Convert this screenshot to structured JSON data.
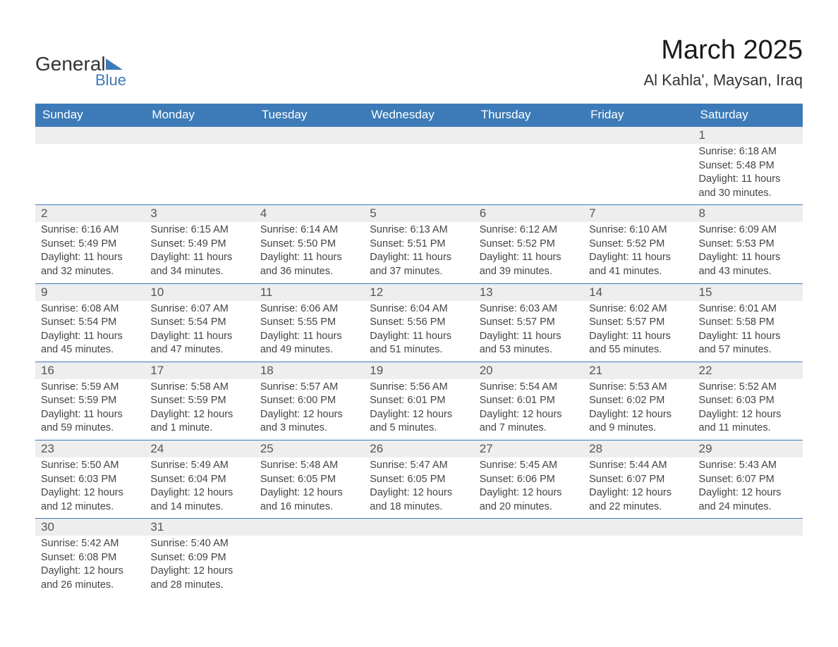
{
  "logo": {
    "word1": "General",
    "word2": "Blue"
  },
  "title": "March 2025",
  "location": "Al Kahla', Maysan, Iraq",
  "colors": {
    "header_bg": "#3d7bb8",
    "header_text": "#ffffff",
    "daynum_bg": "#eeeeee",
    "daynum_text": "#555555",
    "detail_text": "#444444",
    "border": "#3d7bb8",
    "logo_blue": "#3d7bb8",
    "logo_dark": "#333333"
  },
  "day_headers": [
    "Sunday",
    "Monday",
    "Tuesday",
    "Wednesday",
    "Thursday",
    "Friday",
    "Saturday"
  ],
  "weeks": [
    [
      null,
      null,
      null,
      null,
      null,
      null,
      {
        "day": "1",
        "sunrise": "6:18 AM",
        "sunset": "5:48 PM",
        "daylight_hours": "11 hours",
        "daylight_minutes": "30 minutes."
      }
    ],
    [
      {
        "day": "2",
        "sunrise": "6:16 AM",
        "sunset": "5:49 PM",
        "daylight_hours": "11 hours",
        "daylight_minutes": "32 minutes."
      },
      {
        "day": "3",
        "sunrise": "6:15 AM",
        "sunset": "5:49 PM",
        "daylight_hours": "11 hours",
        "daylight_minutes": "34 minutes."
      },
      {
        "day": "4",
        "sunrise": "6:14 AM",
        "sunset": "5:50 PM",
        "daylight_hours": "11 hours",
        "daylight_minutes": "36 minutes."
      },
      {
        "day": "5",
        "sunrise": "6:13 AM",
        "sunset": "5:51 PM",
        "daylight_hours": "11 hours",
        "daylight_minutes": "37 minutes."
      },
      {
        "day": "6",
        "sunrise": "6:12 AM",
        "sunset": "5:52 PM",
        "daylight_hours": "11 hours",
        "daylight_minutes": "39 minutes."
      },
      {
        "day": "7",
        "sunrise": "6:10 AM",
        "sunset": "5:52 PM",
        "daylight_hours": "11 hours",
        "daylight_minutes": "41 minutes."
      },
      {
        "day": "8",
        "sunrise": "6:09 AM",
        "sunset": "5:53 PM",
        "daylight_hours": "11 hours",
        "daylight_minutes": "43 minutes."
      }
    ],
    [
      {
        "day": "9",
        "sunrise": "6:08 AM",
        "sunset": "5:54 PM",
        "daylight_hours": "11 hours",
        "daylight_minutes": "45 minutes."
      },
      {
        "day": "10",
        "sunrise": "6:07 AM",
        "sunset": "5:54 PM",
        "daylight_hours": "11 hours",
        "daylight_minutes": "47 minutes."
      },
      {
        "day": "11",
        "sunrise": "6:06 AM",
        "sunset": "5:55 PM",
        "daylight_hours": "11 hours",
        "daylight_minutes": "49 minutes."
      },
      {
        "day": "12",
        "sunrise": "6:04 AM",
        "sunset": "5:56 PM",
        "daylight_hours": "11 hours",
        "daylight_minutes": "51 minutes."
      },
      {
        "day": "13",
        "sunrise": "6:03 AM",
        "sunset": "5:57 PM",
        "daylight_hours": "11 hours",
        "daylight_minutes": "53 minutes."
      },
      {
        "day": "14",
        "sunrise": "6:02 AM",
        "sunset": "5:57 PM",
        "daylight_hours": "11 hours",
        "daylight_minutes": "55 minutes."
      },
      {
        "day": "15",
        "sunrise": "6:01 AM",
        "sunset": "5:58 PM",
        "daylight_hours": "11 hours",
        "daylight_minutes": "57 minutes."
      }
    ],
    [
      {
        "day": "16",
        "sunrise": "5:59 AM",
        "sunset": "5:59 PM",
        "daylight_hours": "11 hours",
        "daylight_minutes": "59 minutes."
      },
      {
        "day": "17",
        "sunrise": "5:58 AM",
        "sunset": "5:59 PM",
        "daylight_hours": "12 hours",
        "daylight_minutes": "1 minute."
      },
      {
        "day": "18",
        "sunrise": "5:57 AM",
        "sunset": "6:00 PM",
        "daylight_hours": "12 hours",
        "daylight_minutes": "3 minutes."
      },
      {
        "day": "19",
        "sunrise": "5:56 AM",
        "sunset": "6:01 PM",
        "daylight_hours": "12 hours",
        "daylight_minutes": "5 minutes."
      },
      {
        "day": "20",
        "sunrise": "5:54 AM",
        "sunset": "6:01 PM",
        "daylight_hours": "12 hours",
        "daylight_minutes": "7 minutes."
      },
      {
        "day": "21",
        "sunrise": "5:53 AM",
        "sunset": "6:02 PM",
        "daylight_hours": "12 hours",
        "daylight_minutes": "9 minutes."
      },
      {
        "day": "22",
        "sunrise": "5:52 AM",
        "sunset": "6:03 PM",
        "daylight_hours": "12 hours",
        "daylight_minutes": "11 minutes."
      }
    ],
    [
      {
        "day": "23",
        "sunrise": "5:50 AM",
        "sunset": "6:03 PM",
        "daylight_hours": "12 hours",
        "daylight_minutes": "12 minutes."
      },
      {
        "day": "24",
        "sunrise": "5:49 AM",
        "sunset": "6:04 PM",
        "daylight_hours": "12 hours",
        "daylight_minutes": "14 minutes."
      },
      {
        "day": "25",
        "sunrise": "5:48 AM",
        "sunset": "6:05 PM",
        "daylight_hours": "12 hours",
        "daylight_minutes": "16 minutes."
      },
      {
        "day": "26",
        "sunrise": "5:47 AM",
        "sunset": "6:05 PM",
        "daylight_hours": "12 hours",
        "daylight_minutes": "18 minutes."
      },
      {
        "day": "27",
        "sunrise": "5:45 AM",
        "sunset": "6:06 PM",
        "daylight_hours": "12 hours",
        "daylight_minutes": "20 minutes."
      },
      {
        "day": "28",
        "sunrise": "5:44 AM",
        "sunset": "6:07 PM",
        "daylight_hours": "12 hours",
        "daylight_minutes": "22 minutes."
      },
      {
        "day": "29",
        "sunrise": "5:43 AM",
        "sunset": "6:07 PM",
        "daylight_hours": "12 hours",
        "daylight_minutes": "24 minutes."
      }
    ],
    [
      {
        "day": "30",
        "sunrise": "5:42 AM",
        "sunset": "6:08 PM",
        "daylight_hours": "12 hours",
        "daylight_minutes": "26 minutes."
      },
      {
        "day": "31",
        "sunrise": "5:40 AM",
        "sunset": "6:09 PM",
        "daylight_hours": "12 hours",
        "daylight_minutes": "28 minutes."
      },
      null,
      null,
      null,
      null,
      null
    ]
  ],
  "labels": {
    "sunrise": "Sunrise:",
    "sunset": "Sunset:",
    "daylight": "Daylight:",
    "and": "and"
  }
}
